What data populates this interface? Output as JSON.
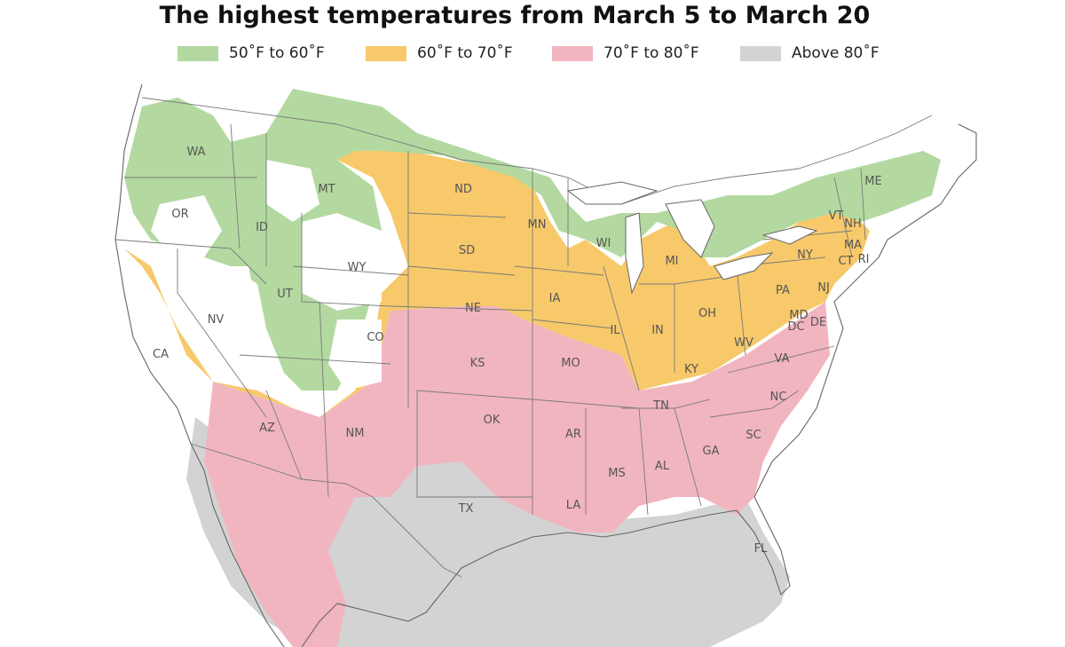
{
  "title": "The highest temperatures from March 5 to March 20",
  "legend": [
    {
      "label": "50˚F to 60˚F",
      "color": "#b3d9a0"
    },
    {
      "label": "60˚F to 70˚F",
      "color": "#f7c96b"
    },
    {
      "label": "70˚F to 80˚F",
      "color": "#f1b5c0"
    },
    {
      "label": "Above 80˚F",
      "color": "#d3d3d3"
    }
  ],
  "states": [
    "WA",
    "OR",
    "CA",
    "ID",
    "NV",
    "MT",
    "WY",
    "UT",
    "AZ",
    "CO",
    "NM",
    "ND",
    "SD",
    "NE",
    "KS",
    "OK",
    "TX",
    "MN",
    "IA",
    "MO",
    "AR",
    "LA",
    "WI",
    "IL",
    "MS",
    "MI",
    "IN",
    "KY",
    "TN",
    "AL",
    "GA",
    "FL",
    "OH",
    "WV",
    "VA",
    "NC",
    "SC",
    "PA",
    "NY",
    "VT",
    "NH",
    "ME",
    "MA",
    "CT",
    "RI",
    "NJ",
    "MD",
    "DE",
    "DC"
  ]
}
